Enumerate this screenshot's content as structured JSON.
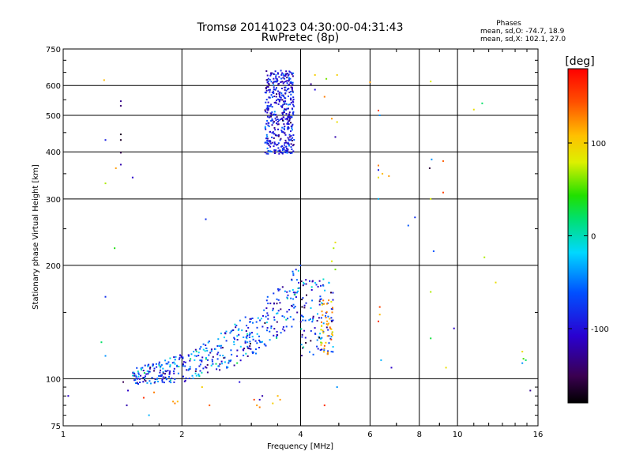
{
  "chart_data": {
    "type": "scatter",
    "title": "Tromsø 20141023 04:30:00-04:31:43",
    "subtitle": "RwPretec (8p)",
    "xlabel": "Frequency [MHz]",
    "ylabel": "Stationary phase Virtual Height [km]",
    "x_scale": "log",
    "y_scale": "log",
    "xlim": [
      1,
      16
    ],
    "ylim": [
      75,
      750
    ],
    "x_ticks": [
      1,
      2,
      4,
      6,
      8,
      10,
      16
    ],
    "y_ticks": [
      75,
      100,
      200,
      300,
      400,
      500,
      600,
      750
    ],
    "grid": true,
    "phases_box": {
      "heading": "Phases",
      "line1": "mean, sd,O: -74.7, 18.9",
      "line2": "mean, sd,X: 102.1, 27.0"
    },
    "colorbar": {
      "label": "[deg]",
      "range": [
        -180,
        180
      ],
      "ticks": [
        100,
        0,
        -100
      ]
    },
    "clusters": [
      {
        "name": "",
        "x_range": [
          3.25,
          3.85
        ],
        "y_range": [
          395,
          660
        ],
        "phase": -95,
        "phase_sd": 25,
        "count": 420
      },
      {
        "name": "",
        "x_range": [
          1.5,
          4.0
        ],
        "y_range": [
          100,
          160
        ],
        "phase": -70,
        "phase_sd": 40,
        "count": 430,
        "trace": "curve"
      },
      {
        "name": "",
        "x_range": [
          4.0,
          4.85
        ],
        "y_range": [
          115,
          185
        ],
        "phase": -80,
        "phase_sd": 45,
        "count": 110
      },
      {
        "name": "",
        "x_range": [
          4.5,
          4.85
        ],
        "y_range": [
          115,
          165
        ],
        "phase": 110,
        "phase_sd": 20,
        "count": 40
      }
    ],
    "points": [
      {
        "x": 1.03,
        "y": 90,
        "p": -110
      },
      {
        "x": 1.27,
        "y": 620,
        "p": 110
      },
      {
        "x": 1.4,
        "y": 545,
        "p": -130
      },
      {
        "x": 1.4,
        "y": 530,
        "p": -140
      },
      {
        "x": 1.28,
        "y": 430,
        "p": -90
      },
      {
        "x": 1.4,
        "y": 445,
        "p": -170
      },
      {
        "x": 1.4,
        "y": 430,
        "p": -165
      },
      {
        "x": 1.4,
        "y": 398,
        "p": -150
      },
      {
        "x": 1.4,
        "y": 370,
        "p": -120
      },
      {
        "x": 1.36,
        "y": 362,
        "p": 120
      },
      {
        "x": 1.28,
        "y": 330,
        "p": 70
      },
      {
        "x": 1.5,
        "y": 342,
        "p": -110
      },
      {
        "x": 1.35,
        "y": 222,
        "p": 40
      },
      {
        "x": 1.28,
        "y": 165,
        "p": -80
      },
      {
        "x": 1.25,
        "y": 125,
        "p": 20
      },
      {
        "x": 1.28,
        "y": 115,
        "p": -40
      },
      {
        "x": 1.42,
        "y": 98,
        "p": -150
      },
      {
        "x": 1.46,
        "y": 93,
        "p": -110
      },
      {
        "x": 1.45,
        "y": 85,
        "p": -120
      },
      {
        "x": 1.6,
        "y": 89,
        "p": 160
      },
      {
        "x": 1.65,
        "y": 80,
        "p": -30
      },
      {
        "x": 1.7,
        "y": 92,
        "p": 130
      },
      {
        "x": 1.9,
        "y": 87,
        "p": 120
      },
      {
        "x": 1.92,
        "y": 86,
        "p": 130
      },
      {
        "x": 1.95,
        "y": 87,
        "p": 110
      },
      {
        "x": 2.25,
        "y": 95,
        "p": 100
      },
      {
        "x": 2.35,
        "y": 85,
        "p": 140
      },
      {
        "x": 2.3,
        "y": 265,
        "p": -80
      },
      {
        "x": 2.8,
        "y": 98,
        "p": -100
      },
      {
        "x": 3.05,
        "y": 88,
        "p": 150
      },
      {
        "x": 3.1,
        "y": 85,
        "p": 120
      },
      {
        "x": 3.15,
        "y": 84,
        "p": 130
      },
      {
        "x": 3.15,
        "y": 88,
        "p": -110
      },
      {
        "x": 3.2,
        "y": 90,
        "p": -120
      },
      {
        "x": 3.4,
        "y": 86,
        "p": 100
      },
      {
        "x": 3.5,
        "y": 90,
        "p": 110
      },
      {
        "x": 3.55,
        "y": 88,
        "p": 120
      },
      {
        "x": 4.6,
        "y": 85,
        "p": 160
      },
      {
        "x": 4.95,
        "y": 95,
        "p": -40
      },
      {
        "x": 4.9,
        "y": 230,
        "p": 90
      },
      {
        "x": 4.85,
        "y": 222,
        "p": 70
      },
      {
        "x": 4.8,
        "y": 205,
        "p": 80
      },
      {
        "x": 4.9,
        "y": 195,
        "p": 60
      },
      {
        "x": 4.6,
        "y": 560,
        "p": 130
      },
      {
        "x": 4.65,
        "y": 625,
        "p": 60
      },
      {
        "x": 4.95,
        "y": 640,
        "p": 100
      },
      {
        "x": 4.8,
        "y": 490,
        "p": 120
      },
      {
        "x": 4.95,
        "y": 480,
        "p": 90
      },
      {
        "x": 4.9,
        "y": 438,
        "p": -120
      },
      {
        "x": 4.35,
        "y": 640,
        "p": 100
      },
      {
        "x": 4.25,
        "y": 605,
        "p": -130
      },
      {
        "x": 4.35,
        "y": 585,
        "p": -100
      },
      {
        "x": 6.0,
        "y": 612,
        "p": 120
      },
      {
        "x": 6.3,
        "y": 515,
        "p": 150
      },
      {
        "x": 6.35,
        "y": 500,
        "p": -40
      },
      {
        "x": 6.3,
        "y": 368,
        "p": 130
      },
      {
        "x": 6.3,
        "y": 358,
        "p": -90
      },
      {
        "x": 6.45,
        "y": 350,
        "p": 110
      },
      {
        "x": 6.7,
        "y": 345,
        "p": 120
      },
      {
        "x": 6.3,
        "y": 342,
        "p": 90
      },
      {
        "x": 6.3,
        "y": 300,
        "p": -30
      },
      {
        "x": 6.35,
        "y": 155,
        "p": 150
      },
      {
        "x": 6.35,
        "y": 148,
        "p": 110
      },
      {
        "x": 6.3,
        "y": 142,
        "p": 160
      },
      {
        "x": 6.4,
        "y": 112,
        "p": -30
      },
      {
        "x": 6.8,
        "y": 107,
        "p": -110
      },
      {
        "x": 7.5,
        "y": 255,
        "p": -60
      },
      {
        "x": 7.8,
        "y": 268,
        "p": -80
      },
      {
        "x": 8.55,
        "y": 615,
        "p": 80
      },
      {
        "x": 8.6,
        "y": 382,
        "p": -40
      },
      {
        "x": 8.5,
        "y": 362,
        "p": -160
      },
      {
        "x": 9.2,
        "y": 378,
        "p": 140
      },
      {
        "x": 9.2,
        "y": 312,
        "p": 150
      },
      {
        "x": 8.55,
        "y": 300,
        "p": 80
      },
      {
        "x": 8.7,
        "y": 218,
        "p": -60
      },
      {
        "x": 8.55,
        "y": 170,
        "p": 70
      },
      {
        "x": 8.55,
        "y": 128,
        "p": 30
      },
      {
        "x": 9.35,
        "y": 107,
        "p": 90
      },
      {
        "x": 9.8,
        "y": 136,
        "p": -110
      },
      {
        "x": 11.0,
        "y": 518,
        "p": 90
      },
      {
        "x": 11.55,
        "y": 538,
        "p": 20
      },
      {
        "x": 11.7,
        "y": 210,
        "p": 70
      },
      {
        "x": 12.5,
        "y": 180,
        "p": 90
      },
      {
        "x": 14.6,
        "y": 118,
        "p": 90
      },
      {
        "x": 14.7,
        "y": 113,
        "p": 50
      },
      {
        "x": 14.9,
        "y": 112,
        "p": 20
      },
      {
        "x": 14.6,
        "y": 110,
        "p": -40
      },
      {
        "x": 15.3,
        "y": 93,
        "p": -130
      }
    ]
  }
}
